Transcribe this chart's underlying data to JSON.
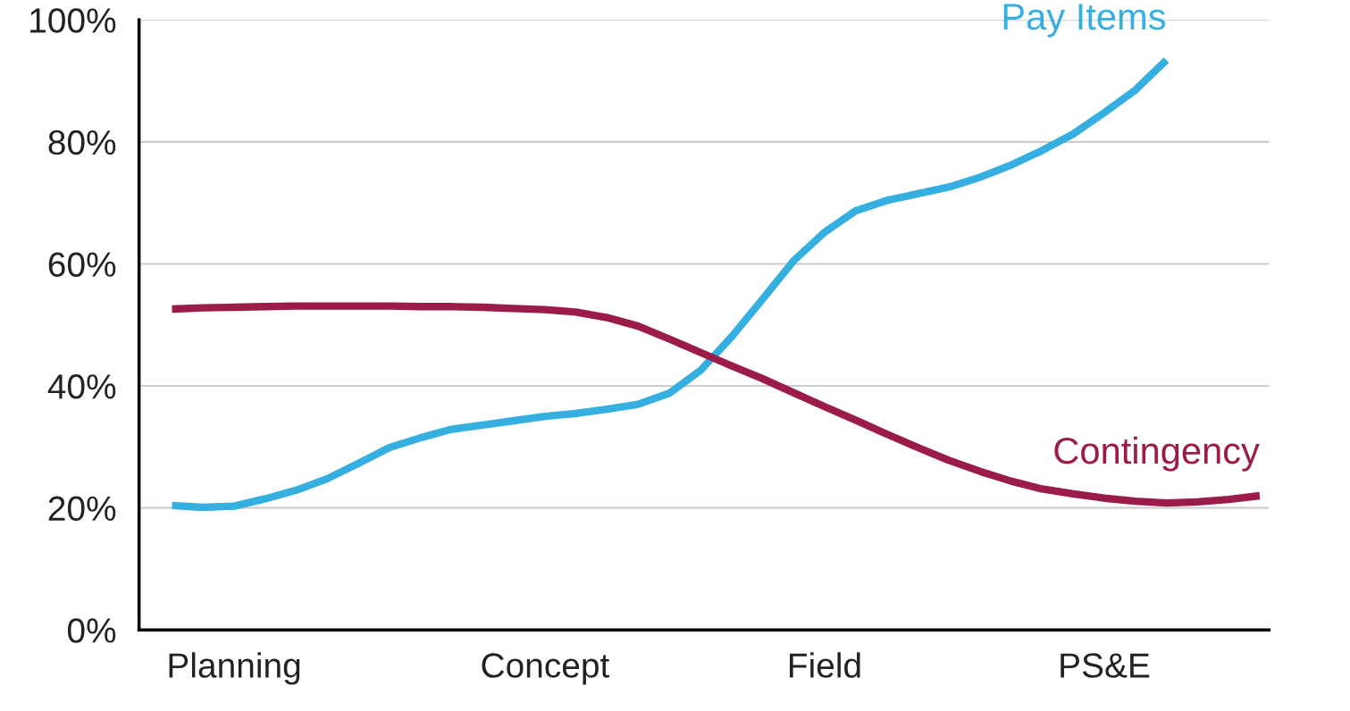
{
  "chart_data": {
    "type": "line",
    "categories": [
      null,
      null,
      "Planning",
      null,
      null,
      null,
      null,
      null,
      null,
      null,
      null,
      null,
      "Concept",
      null,
      null,
      null,
      null,
      null,
      null,
      null,
      null,
      "Field",
      null,
      null,
      null,
      null,
      null,
      null,
      null,
      null,
      "PS&E",
      null,
      null,
      null,
      null,
      null
    ],
    "ylim": [
      0,
      100
    ],
    "yticks": [
      {
        "value": 0,
        "label": "0%"
      },
      {
        "value": 20,
        "label": "20%"
      },
      {
        "value": 40,
        "label": "40%"
      },
      {
        "value": 60,
        "label": "60%"
      },
      {
        "value": 80,
        "label": "80%"
      },
      {
        "value": 100,
        "label": "100%"
      }
    ],
    "grid": "y",
    "marker": "none",
    "line_style": "solid",
    "series": [
      {
        "name": "Pay Items",
        "color": "#35afe0",
        "values": [
          20.4,
          20.1,
          20.3,
          21.5,
          22.9,
          24.8,
          27.3,
          29.9,
          31.5,
          32.9,
          33.6,
          34.3,
          35.0,
          35.5,
          36.2,
          37.0,
          38.8,
          42.5,
          48.0,
          54.2,
          60.5,
          65.2,
          68.7,
          70.4,
          71.5,
          72.6,
          74.2,
          76.2,
          78.6,
          81.3,
          84.8,
          88.5,
          93.4,
          null,
          null,
          null
        ]
      },
      {
        "name": "Contingency",
        "color": "#9b1b4b",
        "values": [
          52.6,
          52.8,
          52.9,
          53.0,
          53.1,
          53.1,
          53.1,
          53.1,
          53.0,
          53.0,
          52.9,
          52.7,
          52.5,
          52.1,
          51.2,
          49.8,
          47.7,
          45.5,
          43.3,
          41.2,
          38.9,
          36.6,
          34.4,
          32.1,
          29.9,
          27.8,
          26.0,
          24.4,
          23.1,
          22.3,
          21.6,
          21.1,
          20.8,
          21.0,
          21.4,
          22.0
        ]
      }
    ]
  }
}
